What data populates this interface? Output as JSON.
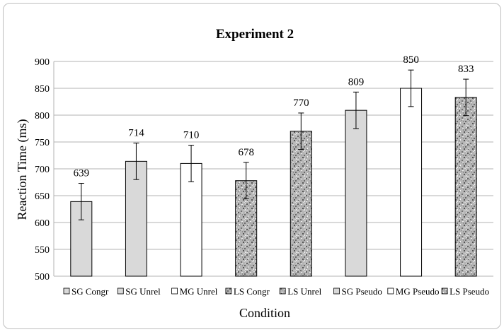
{
  "chart_data": {
    "type": "bar",
    "title": "Experiment 2",
    "xlabel": "Condition",
    "ylabel": "Reaction Time (ms)",
    "ylim": [
      500,
      900
    ],
    "yticks": [
      500,
      550,
      600,
      650,
      700,
      750,
      800,
      850,
      900
    ],
    "grid": true,
    "legend_position": "bottom",
    "categories": [
      "SG Congr",
      "SG Unrel",
      "MG Unrel",
      "LS Congr",
      "LS Unrel",
      "SG Pseudo",
      "MG Pseudo",
      "LS Pseudo"
    ],
    "values": [
      639,
      714,
      710,
      678,
      770,
      809,
      850,
      833
    ],
    "error": [
      34,
      34,
      34,
      34,
      34,
      34,
      34,
      34
    ],
    "data_labels": [
      "639",
      "714",
      "710",
      "678",
      "770",
      "809",
      "850",
      "833"
    ],
    "fills": [
      "light-gray",
      "light-gray",
      "white",
      "granite",
      "granite",
      "light-gray",
      "white",
      "granite"
    ],
    "colors": {
      "light-gray": "#d9d9d9",
      "white": "#ffffff",
      "granite": "#a6a6a6",
      "outline": "#000000",
      "grid": "#b3b3b3"
    }
  }
}
